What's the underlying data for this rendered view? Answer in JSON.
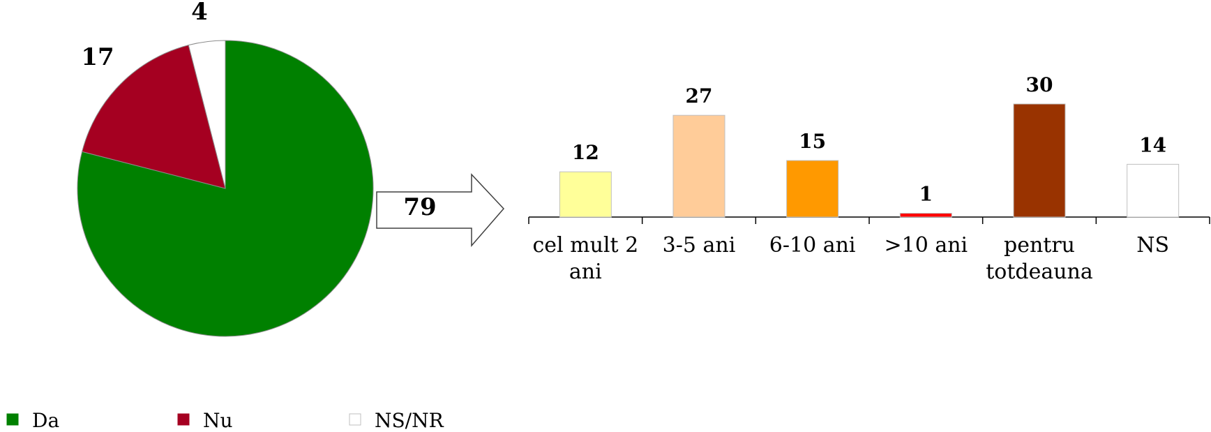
{
  "chart_data": [
    {
      "type": "pie",
      "slices": [
        {
          "name": "Da",
          "value": 79,
          "label": "79",
          "color": "#008000"
        },
        {
          "name": "Nu",
          "value": 17,
          "label": "17",
          "color": "#A50021"
        },
        {
          "name": "NS/NR",
          "value": 4,
          "label": "4",
          "color": "#FFFFFF"
        }
      ],
      "legend_placement": "bottom-left"
    },
    {
      "type": "bar",
      "categories": [
        [
          "cel mult 2",
          "ani"
        ],
        [
          "3-5 ani"
        ],
        [
          "6-10 ani"
        ],
        [
          ">10 ani"
        ],
        [
          "pentru",
          "totdeauna"
        ],
        [
          "NS"
        ]
      ],
      "values": [
        12,
        27,
        15,
        1,
        30,
        14
      ],
      "value_labels": [
        "12",
        "27",
        "15",
        "1",
        "30",
        "14"
      ],
      "colors": [
        "#FFFF99",
        "#FFCC99",
        "#FF9900",
        "#FF0000",
        "#993300",
        "#FFFFFF"
      ],
      "ylim": [
        0,
        30
      ],
      "grid": false
    }
  ]
}
